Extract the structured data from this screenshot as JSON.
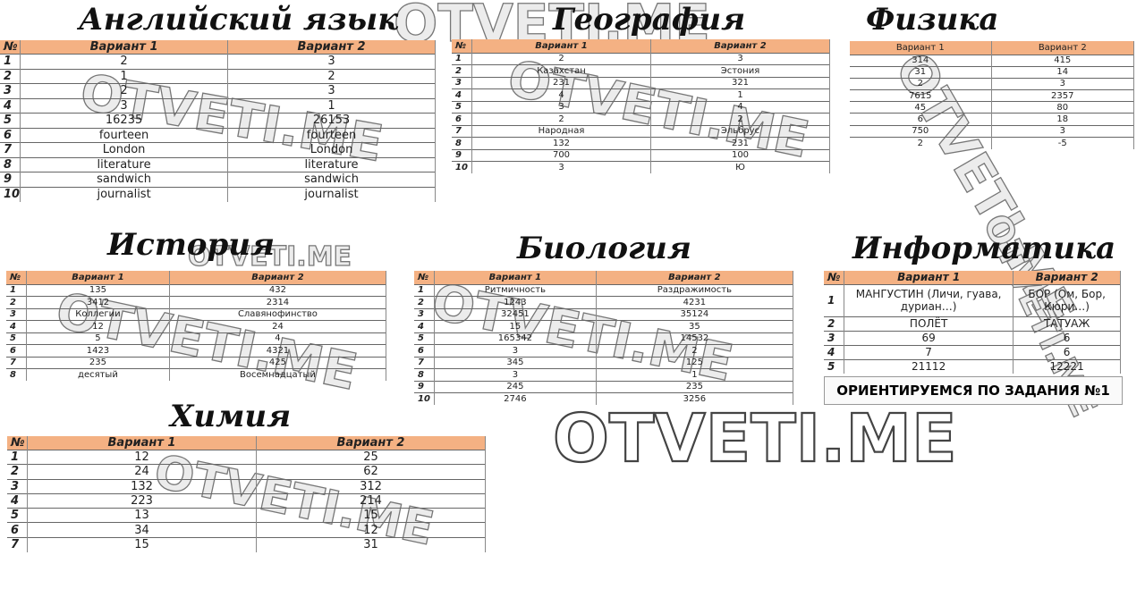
{
  "watermark": "OTVETI.ME",
  "header_no": "№",
  "v1": "Вариант 1",
  "v2": "Вариант 2",
  "english": {
    "title": "Английский язык",
    "rows": [
      [
        "1",
        "2",
        "3"
      ],
      [
        "2",
        "1",
        "2"
      ],
      [
        "3",
        "2",
        "3"
      ],
      [
        "4",
        "3",
        "1"
      ],
      [
        "5",
        "16235",
        "26153"
      ],
      [
        "6",
        "fourteen",
        "fourteen"
      ],
      [
        "7",
        "London",
        "London"
      ],
      [
        "8",
        "literature",
        "literature"
      ],
      [
        "9",
        "sandwich",
        "sandwich"
      ],
      [
        "10",
        "journalist",
        "journalist"
      ]
    ]
  },
  "geography": {
    "title": "География",
    "rows": [
      [
        "1",
        "2",
        "3"
      ],
      [
        "2",
        "Казахстан",
        "Эстония"
      ],
      [
        "3",
        "231",
        "321"
      ],
      [
        "4",
        "4",
        "1"
      ],
      [
        "5",
        "3",
        "4"
      ],
      [
        "6",
        "2",
        "2"
      ],
      [
        "7",
        "Народная",
        "Эльбрус"
      ],
      [
        "8",
        "132",
        "231"
      ],
      [
        "9",
        "700",
        "100"
      ],
      [
        "10",
        "3",
        "Ю"
      ]
    ]
  },
  "physics": {
    "title": "Физика",
    "rows": [
      [
        "314",
        "415"
      ],
      [
        "31",
        "14"
      ],
      [
        "2",
        "3"
      ],
      [
        "7615",
        "2357"
      ],
      [
        "45",
        "80"
      ],
      [
        "6",
        "18"
      ],
      [
        "750",
        "3"
      ],
      [
        "2",
        "-5"
      ]
    ]
  },
  "history": {
    "title": "История",
    "rows": [
      [
        "1",
        "135",
        "432"
      ],
      [
        "2",
        "3412",
        "2314"
      ],
      [
        "3",
        "Коллегии",
        "Славянофинство"
      ],
      [
        "4",
        "12",
        "24"
      ],
      [
        "5",
        "5",
        "4"
      ],
      [
        "6",
        "1423",
        "4321"
      ],
      [
        "7",
        "235",
        "425"
      ],
      [
        "8",
        "десятый",
        "Восемнадцатый"
      ]
    ]
  },
  "biology": {
    "title": "Биология",
    "rows": [
      [
        "1",
        "Ритмичность",
        "Раздражимость"
      ],
      [
        "2",
        "1243",
        "4231"
      ],
      [
        "3",
        "32451",
        "35124"
      ],
      [
        "4",
        "15",
        "35"
      ],
      [
        "5",
        "165342",
        "14532"
      ],
      [
        "6",
        "3",
        "2"
      ],
      [
        "7",
        "345",
        "125"
      ],
      [
        "8",
        "3",
        "1"
      ],
      [
        "9",
        "245",
        "235"
      ],
      [
        "10",
        "2746",
        "3256"
      ]
    ]
  },
  "informatics": {
    "title": "Информатика",
    "rows": [
      [
        "1",
        "МАНГУСТИН (Личи, гуава, дуриан…)",
        "БОР (Ом, Бор, Кюри…)"
      ],
      [
        "2",
        "ПОЛЁТ",
        "ТАТУАЖ"
      ],
      [
        "3",
        "69",
        "6"
      ],
      [
        "4",
        "7",
        "6"
      ],
      [
        "5",
        "21112",
        "12221"
      ]
    ],
    "note": "ОРИЕНТИРУЕМСЯ ПО ЗАДАНИЯ №1"
  },
  "chemistry": {
    "title": "Химия",
    "rows": [
      [
        "1",
        "12",
        "25"
      ],
      [
        "2",
        "24",
        "62"
      ],
      [
        "3",
        "132",
        "312"
      ],
      [
        "4",
        "223",
        "214"
      ],
      [
        "5",
        "13",
        "15"
      ],
      [
        "6",
        "34",
        "12"
      ],
      [
        "7",
        "15",
        "31"
      ]
    ]
  }
}
